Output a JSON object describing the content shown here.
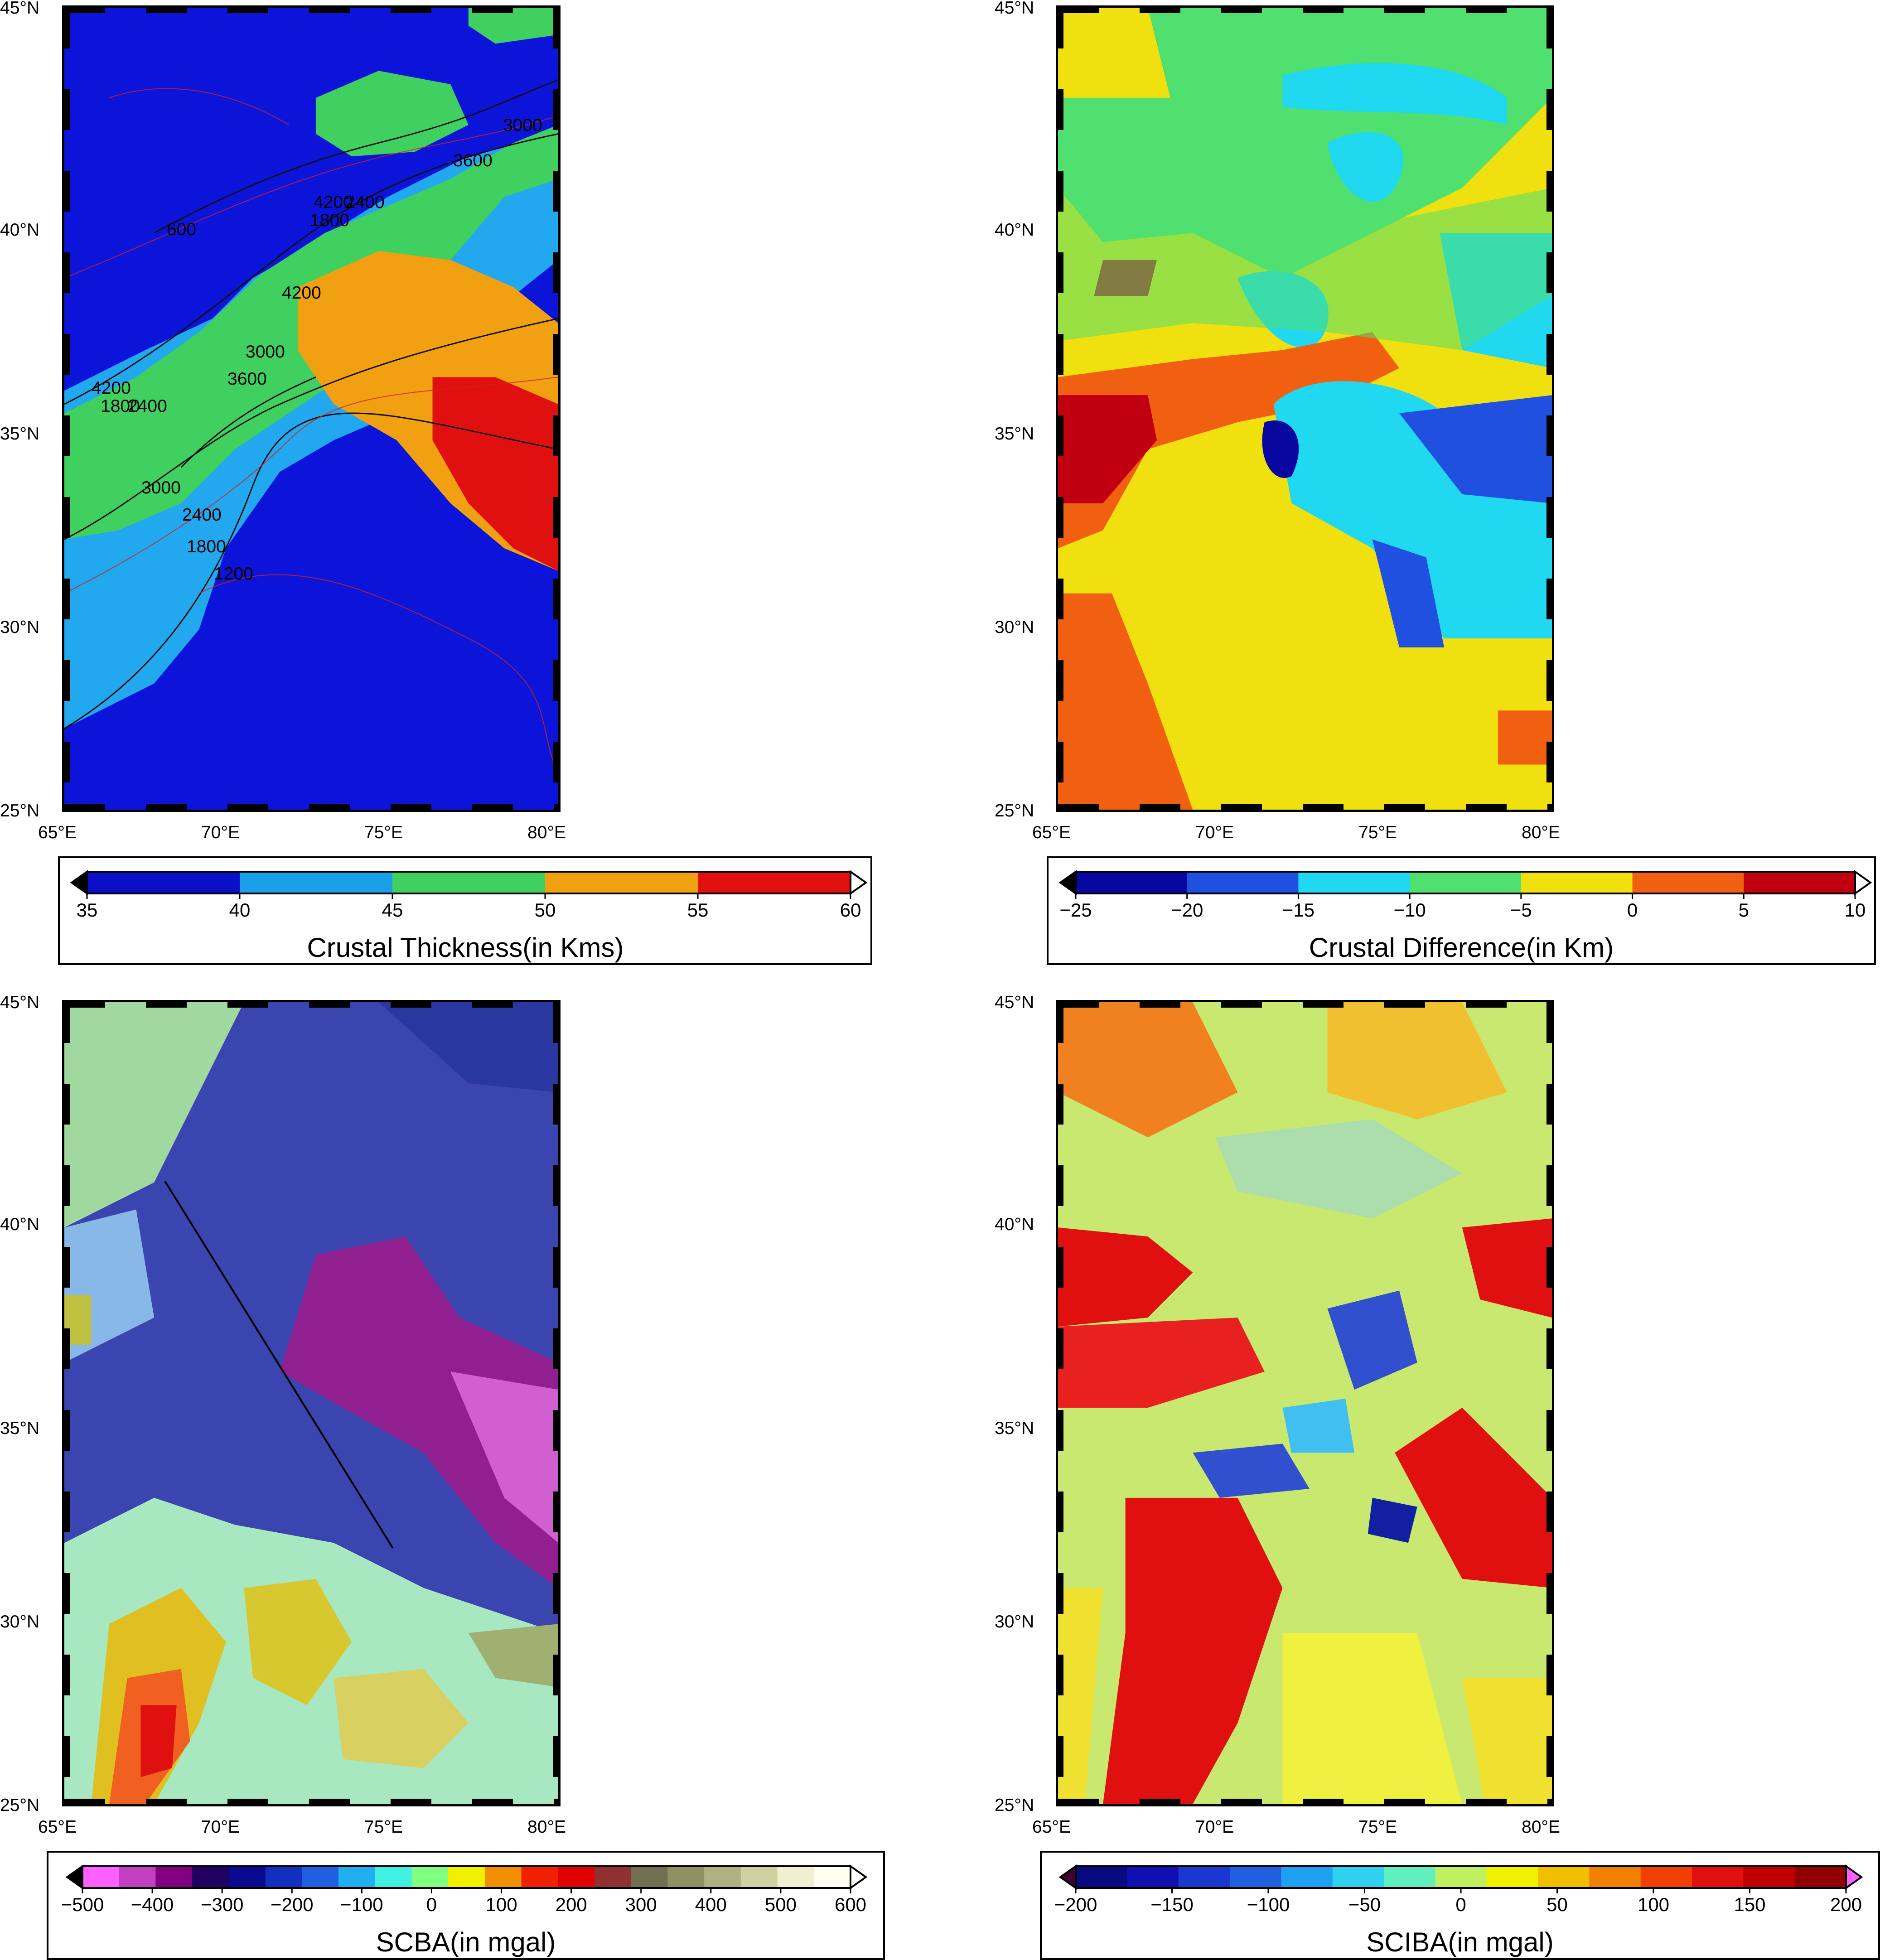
{
  "panels": [
    {
      "id": "crustal-thickness",
      "lat_labels": [
        "45°N",
        "40°N",
        "35°N",
        "30°N",
        "25°N"
      ],
      "lon_labels": [
        "65°E",
        "70°E",
        "75°E",
        "80°E"
      ],
      "contour_labels": [
        "3000",
        "3600",
        "4200",
        "1800",
        "2400",
        "600",
        "4200",
        "3000",
        "3600",
        "4200",
        "1800",
        "2400",
        "3000",
        "2400",
        "1800",
        "1200"
      ]
    },
    {
      "id": "crustal-difference",
      "lat_labels": [
        "45°N",
        "40°N",
        "35°N",
        "30°N",
        "25°N"
      ],
      "lon_labels": [
        "65°E",
        "70°E",
        "75°E",
        "80°E"
      ]
    },
    {
      "id": "scba",
      "lat_labels": [
        "45°N",
        "40°N",
        "35°N",
        "30°N",
        "25°N"
      ],
      "lon_labels": [
        "65°E",
        "70°E",
        "75°E",
        "80°E"
      ]
    },
    {
      "id": "sciba",
      "lat_labels": [
        "45°N",
        "40°N",
        "35°N",
        "30°N",
        "25°N"
      ],
      "lon_labels": [
        "65°E",
        "70°E",
        "75°E",
        "80°E"
      ]
    }
  ],
  "colorbars": [
    {
      "title": "Crustal Thickness(in Kms)",
      "ticks": [
        "35",
        "40",
        "45",
        "50",
        "55",
        "60"
      ],
      "colors": [
        "#0a10c8",
        "#1aa0e8",
        "#40d060",
        "#f0a010",
        "#e01010"
      ],
      "back_color": "#000000",
      "fore_color": "#ffffff"
    },
    {
      "title": "Crustal Difference(in Km)",
      "ticks": [
        "−25",
        "−20",
        "−15",
        "−10",
        "−5",
        "0",
        "5",
        "10"
      ],
      "colors": [
        "#0808a0",
        "#2050e0",
        "#20d8f0",
        "#50e070",
        "#f0e010",
        "#f06010",
        "#c00010"
      ],
      "back_color": "#000000",
      "fore_color": "#ffffff"
    },
    {
      "title": "SCBA(in mgal)",
      "ticks": [
        "−500",
        "−400",
        "−300",
        "−200",
        "−100",
        "0",
        "100",
        "200",
        "300",
        "400",
        "500",
        "600"
      ],
      "colors": [
        "#ff60ff",
        "#c040c0",
        "#800080",
        "#200060",
        "#0a0a90",
        "#1030c0",
        "#2060e0",
        "#20b0f0",
        "#40f0e0",
        "#80ff80",
        "#f0f000",
        "#f09000",
        "#f02000",
        "#e00000",
        "#903030",
        "#707050",
        "#909060",
        "#b0b080",
        "#d0d0a0",
        "#f0f0d0",
        "#fffff0"
      ],
      "back_color": "#000000",
      "fore_color": "#ffffff"
    },
    {
      "title": "SCIBA(in mgal)",
      "ticks": [
        "−200",
        "−150",
        "−100",
        "−50",
        "0",
        "50",
        "100",
        "150",
        "200"
      ],
      "colors": [
        "#0a0a80",
        "#1010b0",
        "#1838d0",
        "#2060e0",
        "#20a0f0",
        "#30d0f0",
        "#60f0c0",
        "#c0f060",
        "#f0f000",
        "#f0c000",
        "#f08000",
        "#f04000",
        "#e01010",
        "#c00000",
        "#900000"
      ],
      "back_color": "#400030",
      "fore_color": "#ff60ff"
    }
  ]
}
